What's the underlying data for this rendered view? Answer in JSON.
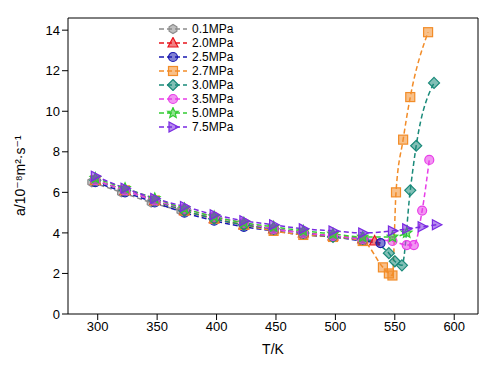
{
  "chart_data": {
    "type": "line",
    "x_label": "T/K",
    "y_label": "a/10⁻⁸m²·s⁻¹",
    "xlim": [
      275,
      620
    ],
    "xticks": [
      300,
      350,
      400,
      450,
      500,
      550,
      600
    ],
    "ylim": [
      0,
      14.6
    ],
    "yticks": [
      0,
      2,
      4,
      6,
      8,
      10,
      12,
      14
    ],
    "legend": "upper left",
    "line_style": "dashed",
    "series": [
      {
        "name": "0.1MPa",
        "color": "#8c8c8c",
        "marker": "hexagon",
        "x": [
          295,
          320,
          345,
          370
        ],
        "values": [
          6.5,
          6.0,
          5.5,
          5.1
        ]
      },
      {
        "name": "2.0MPa",
        "color": "#e8141c",
        "marker": "triangle",
        "x": [
          298,
          323,
          348,
          373,
          398,
          423,
          448,
          473,
          498,
          523,
          533
        ],
        "values": [
          6.6,
          6.1,
          5.6,
          5.1,
          4.7,
          4.4,
          4.2,
          4.0,
          3.85,
          3.7,
          3.6
        ]
      },
      {
        "name": "2.5MPa",
        "color": "#1a1ab0",
        "marker": "circle",
        "x": [
          298,
          323,
          348,
          373,
          398,
          423,
          448,
          473,
          498,
          523,
          538
        ],
        "values": [
          6.5,
          6.0,
          5.5,
          5.0,
          4.6,
          4.3,
          4.1,
          3.9,
          3.8,
          3.6,
          3.5
        ]
      },
      {
        "name": "2.7MPa",
        "color": "#f28c28",
        "marker": "square",
        "x": [
          298,
          323,
          348,
          373,
          398,
          423,
          448,
          473,
          498,
          523,
          540,
          545,
          548,
          551,
          557,
          563,
          578
        ],
        "values": [
          6.6,
          6.1,
          5.6,
          5.1,
          4.7,
          4.4,
          4.1,
          3.9,
          3.8,
          3.6,
          2.3,
          2.0,
          1.9,
          6.0,
          8.6,
          10.7,
          13.9
        ]
      },
      {
        "name": "3.0MPa",
        "color": "#1a8a7a",
        "marker": "diamond",
        "x": [
          298,
          323,
          348,
          373,
          398,
          423,
          448,
          473,
          498,
          523,
          545,
          550,
          556,
          563,
          568,
          583
        ],
        "values": [
          6.6,
          6.1,
          5.6,
          5.1,
          4.7,
          4.4,
          4.2,
          4.0,
          3.8,
          3.7,
          3.0,
          2.6,
          2.4,
          6.1,
          8.3,
          11.4
        ]
      },
      {
        "name": "3.5MPa",
        "color": "#e83ee8",
        "marker": "circle",
        "x": [
          298,
          323,
          348,
          373,
          398,
          423,
          448,
          473,
          498,
          523,
          548,
          560,
          566,
          573,
          579
        ],
        "values": [
          6.6,
          6.1,
          5.6,
          5.2,
          4.8,
          4.5,
          4.2,
          4.0,
          3.85,
          3.7,
          3.6,
          3.4,
          3.4,
          5.1,
          7.6
        ]
      },
      {
        "name": "5.0MPa",
        "color": "#33cc33",
        "marker": "star",
        "x": [
          298,
          323,
          348,
          373,
          398,
          423,
          448,
          473,
          498,
          523,
          548,
          560
        ],
        "values": [
          6.7,
          6.2,
          5.7,
          5.2,
          4.8,
          4.5,
          4.3,
          4.1,
          3.95,
          3.8,
          3.8,
          4.0
        ]
      },
      {
        "name": "7.5MPa",
        "color": "#7a2be2",
        "marker": "triangle-right",
        "x": [
          298,
          323,
          348,
          373,
          398,
          423,
          448,
          473,
          498,
          523,
          548,
          560,
          573,
          585
        ],
        "values": [
          6.8,
          6.2,
          5.7,
          5.3,
          4.9,
          4.6,
          4.4,
          4.2,
          4.1,
          4.0,
          4.1,
          4.2,
          4.3,
          4.4
        ]
      }
    ]
  }
}
